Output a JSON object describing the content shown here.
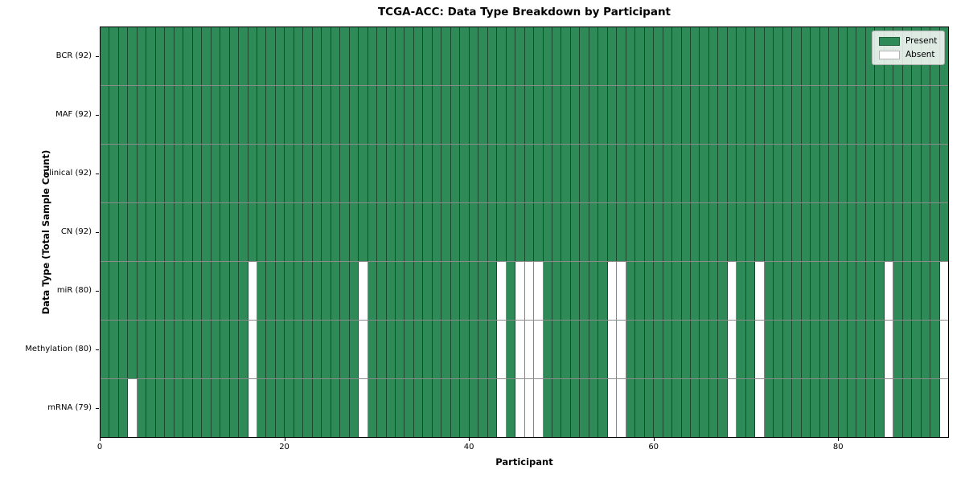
{
  "chart_data": {
    "type": "heatmap",
    "title": "TCGA-ACC: Data Type Breakdown by Participant",
    "xlabel": "Participant",
    "ylabel": "Data Type (Total Sample Count)",
    "n_participants": 92,
    "x_ticks": [
      0,
      20,
      40,
      60,
      80
    ],
    "x_range": [
      0,
      92
    ],
    "grid": "cell-borders",
    "legend_position": "upper-right",
    "legend": [
      {
        "label": "Present",
        "color": "#2e8b57"
      },
      {
        "label": "Absent",
        "color": "#ffffff"
      }
    ],
    "rows": [
      {
        "label": "BCR (92)",
        "data_type": "BCR",
        "present_count": 92,
        "absent_participants": []
      },
      {
        "label": "MAF (92)",
        "data_type": "MAF",
        "present_count": 92,
        "absent_participants": []
      },
      {
        "label": "Clinical (92)",
        "data_type": "Clinical",
        "present_count": 92,
        "absent_participants": []
      },
      {
        "label": "CN (92)",
        "data_type": "CN",
        "present_count": 92,
        "absent_participants": []
      },
      {
        "label": "miR (80)",
        "data_type": "miR",
        "present_count": 80,
        "absent_participants": [
          16,
          28,
          43,
          45,
          46,
          47,
          55,
          56,
          68,
          71,
          85,
          91
        ]
      },
      {
        "label": "Methylation (80)",
        "data_type": "Methylation",
        "present_count": 80,
        "absent_participants": [
          16,
          28,
          43,
          45,
          46,
          47,
          55,
          56,
          68,
          71,
          85,
          91
        ]
      },
      {
        "label": "mRNA (79)",
        "data_type": "mRNA",
        "present_count": 79,
        "absent_participants": [
          3,
          16,
          28,
          43,
          45,
          46,
          47,
          55,
          56,
          68,
          71,
          85,
          91
        ]
      }
    ]
  }
}
